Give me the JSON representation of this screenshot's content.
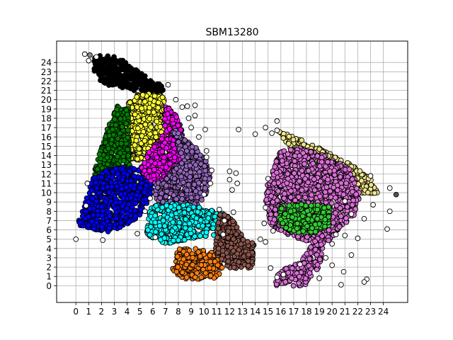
{
  "chart_data": {
    "type": "scatter",
    "title": "SBM13280",
    "xlabel": "",
    "ylabel": "",
    "xlim": [
      -1.5,
      25.9
    ],
    "ylim": [
      -1.8,
      26.3
    ],
    "x_ticks": [
      0,
      1,
      2,
      3,
      4,
      5,
      6,
      7,
      8,
      9,
      10,
      11,
      12,
      13,
      14,
      15,
      16,
      17,
      18,
      19,
      20,
      21,
      22,
      23,
      24
    ],
    "y_ticks": [
      0,
      1,
      2,
      3,
      4,
      5,
      6,
      7,
      8,
      9,
      10,
      11,
      12,
      13,
      14,
      15,
      16,
      17,
      18,
      19,
      20,
      21,
      22,
      23,
      24
    ],
    "grid": true,
    "legend": "none",
    "marker_edge_color": "#000000",
    "clusters": [
      {
        "color": "#000000",
        "x_range": [
          1.3,
          7.0
        ],
        "y_range": [
          20.5,
          24.8
        ],
        "polygon": [
          [
            1.3,
            24.7
          ],
          [
            3.0,
            24.8
          ],
          [
            4.5,
            23.5
          ],
          [
            6.0,
            22.0
          ],
          [
            7.0,
            21.5
          ],
          [
            6.8,
            20.5
          ],
          [
            4.5,
            21.0
          ],
          [
            2.5,
            21.5
          ],
          [
            1.5,
            22.5
          ]
        ]
      },
      {
        "color": "#FFFF33",
        "x_range": [
          3.8,
          7.5
        ],
        "y_range": [
          12.8,
          20.8
        ],
        "polygon": [
          [
            4.0,
            19.5
          ],
          [
            5.0,
            20.8
          ],
          [
            6.8,
            20.5
          ],
          [
            7.5,
            17.0
          ],
          [
            7.0,
            15.0
          ],
          [
            5.5,
            13.5
          ],
          [
            4.2,
            13.5
          ],
          [
            3.8,
            16.0
          ]
        ]
      },
      {
        "color": "#008000",
        "x_range": [
          1.3,
          4.2
        ],
        "y_range": [
          11.5,
          19.5
        ],
        "polygon": [
          [
            3.2,
            19.5
          ],
          [
            4.2,
            19.0
          ],
          [
            4.2,
            12.8
          ],
          [
            2.5,
            11.8
          ],
          [
            1.3,
            11.5
          ],
          [
            1.8,
            14.5
          ],
          [
            2.5,
            17.0
          ]
        ]
      },
      {
        "color": "#0000FF",
        "x_range": [
          0.1,
          6.1
        ],
        "y_range": [
          5.8,
          12.8
        ],
        "polygon": [
          [
            1.3,
            11.5
          ],
          [
            2.5,
            12.5
          ],
          [
            4.2,
            12.8
          ],
          [
            6.0,
            12.0
          ],
          [
            6.0,
            10.0
          ],
          [
            5.0,
            7.5
          ],
          [
            4.0,
            6.5
          ],
          [
            2.5,
            5.8
          ],
          [
            1.5,
            6.0
          ],
          [
            0.1,
            6.5
          ],
          [
            0.5,
            8.0
          ]
        ]
      },
      {
        "color": "#FF00FF",
        "x_range": [
          5.0,
          8.5
        ],
        "y_range": [
          11.2,
          19.5
        ],
        "polygon": [
          [
            7.0,
            19.5
          ],
          [
            8.0,
            18.0
          ],
          [
            8.5,
            15.5
          ],
          [
            8.3,
            13.0
          ],
          [
            7.5,
            11.5
          ],
          [
            5.8,
            11.2
          ],
          [
            5.0,
            12.5
          ],
          [
            5.5,
            14.0
          ],
          [
            6.8,
            16.5
          ]
        ]
      },
      {
        "color": "#9467BD",
        "x_range": [
          6.0,
          10.5
        ],
        "y_range": [
          8.2,
          17.0
        ],
        "polygon": [
          [
            7.5,
            17.0
          ],
          [
            8.5,
            16.0
          ],
          [
            10.0,
            14.0
          ],
          [
            10.5,
            12.0
          ],
          [
            10.2,
            9.5
          ],
          [
            9.0,
            8.2
          ],
          [
            6.5,
            8.5
          ],
          [
            6.0,
            10.5
          ],
          [
            7.2,
            12.0
          ],
          [
            8.3,
            13.5
          ]
        ]
      },
      {
        "color": "#00FFFF",
        "x_range": [
          5.5,
          11.5
        ],
        "y_range": [
          4.5,
          9.0
        ],
        "polygon": [
          [
            5.8,
            8.5
          ],
          [
            7.5,
            9.0
          ],
          [
            9.5,
            8.5
          ],
          [
            11.5,
            7.8
          ],
          [
            11.0,
            5.5
          ],
          [
            9.0,
            5.0
          ],
          [
            7.0,
            4.5
          ],
          [
            5.5,
            5.5
          ]
        ]
      },
      {
        "color": "#FF7F0E",
        "x_range": [
          7.5,
          11.5
        ],
        "y_range": [
          0.6,
          4.0
        ],
        "polygon": [
          [
            8.0,
            4.0
          ],
          [
            9.5,
            4.0
          ],
          [
            11.0,
            3.8
          ],
          [
            11.5,
            2.0
          ],
          [
            11.0,
            0.7
          ],
          [
            10.0,
            0.6
          ],
          [
            8.5,
            0.7
          ],
          [
            7.5,
            1.5
          ]
        ]
      },
      {
        "color": "#8C564B",
        "x_range": [
          10.8,
          13.9
        ],
        "y_range": [
          1.7,
          7.8
        ],
        "polygon": [
          [
            11.2,
            7.8
          ],
          [
            12.0,
            7.5
          ],
          [
            13.0,
            5.5
          ],
          [
            13.9,
            4.5
          ],
          [
            13.8,
            2.0
          ],
          [
            12.5,
            1.7
          ],
          [
            11.5,
            2.2
          ],
          [
            10.8,
            4.0
          ]
        ]
      },
      {
        "color": "#F0E68C",
        "x_range": [
          15.8,
          23.6
        ],
        "y_range": [
          9.8,
          16.6
        ],
        "polygon": [
          [
            15.8,
            16.6
          ],
          [
            17.5,
            15.8
          ],
          [
            19.5,
            14.5
          ],
          [
            21.5,
            13.0
          ],
          [
            23.0,
            11.5
          ],
          [
            23.6,
            10.0
          ],
          [
            22.5,
            9.8
          ],
          [
            21.5,
            10.5
          ],
          [
            20.0,
            12.0
          ],
          [
            18.0,
            13.5
          ],
          [
            16.5,
            15.0
          ]
        ]
      },
      {
        "color": "#DA70D6",
        "x_range": [
          14.8,
          22.2
        ],
        "y_range": [
          0.0,
          14.8
        ],
        "polygon": [
          [
            16.0,
            14.5
          ],
          [
            17.5,
            14.8
          ],
          [
            19.5,
            14.0
          ],
          [
            21.5,
            12.5
          ],
          [
            22.2,
            10.0
          ],
          [
            21.8,
            7.5
          ],
          [
            20.5,
            6.0
          ],
          [
            19.5,
            4.5
          ],
          [
            19.0,
            2.0
          ],
          [
            18.0,
            0.0
          ],
          [
            15.5,
            0.0
          ],
          [
            15.8,
            1.5
          ],
          [
            17.5,
            2.5
          ],
          [
            18.5,
            4.5
          ],
          [
            16.5,
            5.5
          ],
          [
            15.2,
            6.5
          ],
          [
            14.8,
            9.0
          ],
          [
            15.0,
            11.5
          ]
        ]
      },
      {
        "color": "#32CD32",
        "x_range": [
          15.8,
          19.8
        ],
        "y_range": [
          5.6,
          8.8
        ],
        "polygon": [
          [
            16.0,
            8.6
          ],
          [
            18.0,
            8.8
          ],
          [
            19.8,
            8.5
          ],
          [
            19.8,
            6.5
          ],
          [
            18.5,
            5.6
          ],
          [
            16.5,
            5.8
          ],
          [
            15.8,
            7.0
          ]
        ]
      }
    ],
    "outliers_color": "#FFFFFF",
    "outliers": [
      [
        0.7,
        24.9
      ],
      [
        1.0,
        24.2
      ],
      [
        1.6,
        24.6
      ],
      [
        0.0,
        5.0
      ],
      [
        0.8,
        8.6
      ],
      [
        0.9,
        11.0
      ],
      [
        2.1,
        4.9
      ],
      [
        4.8,
        5.6
      ],
      [
        6.2,
        5.2
      ],
      [
        5.8,
        9.4
      ],
      [
        5.4,
        8.0
      ],
      [
        7.2,
        21.6
      ],
      [
        7.8,
        20.0
      ],
      [
        8.3,
        19.2
      ],
      [
        8.8,
        18.0
      ],
      [
        8.7,
        19.3
      ],
      [
        9.0,
        17.0
      ],
      [
        9.3,
        18.3
      ],
      [
        9.6,
        16.0
      ],
      [
        9.3,
        19.4
      ],
      [
        10.2,
        14.5
      ],
      [
        10.2,
        13.8
      ],
      [
        10.1,
        16.8
      ],
      [
        10.6,
        12.4
      ],
      [
        10.5,
        11.0
      ],
      [
        10.0,
        9.8
      ],
      [
        11.2,
        8.2
      ],
      [
        11.6,
        7.0
      ],
      [
        11.5,
        5.5
      ],
      [
        12.3,
        7.9
      ],
      [
        12.0,
        11.4
      ],
      [
        12.2,
        10.3
      ],
      [
        12.6,
        11.0
      ],
      [
        12.5,
        12.1
      ],
      [
        12.0,
        12.3
      ],
      [
        12.7,
        16.8
      ],
      [
        14.0,
        16.3
      ],
      [
        14.4,
        5.0
      ],
      [
        14.8,
        17.0
      ],
      [
        15.0,
        11.5
      ],
      [
        15.3,
        16.4
      ],
      [
        15.7,
        17.7
      ],
      [
        15.7,
        16.7
      ],
      [
        14.8,
        8.4
      ],
      [
        14.7,
        6.7
      ],
      [
        14.8,
        4.7
      ],
      [
        15.4,
        5.9
      ],
      [
        15.2,
        1.9
      ],
      [
        15.7,
        0.9
      ],
      [
        16.2,
        1.2
      ],
      [
        17.5,
        2.3
      ],
      [
        20.7,
        0.1
      ],
      [
        20.9,
        1.5
      ],
      [
        19.5,
        3.0
      ],
      [
        20.0,
        4.5
      ],
      [
        21.5,
        3.3
      ],
      [
        22.0,
        5.1
      ],
      [
        22.5,
        7.2
      ],
      [
        23.2,
        8.7
      ],
      [
        21.5,
        7.7
      ],
      [
        21.0,
        9.1
      ],
      [
        24.5,
        8.0
      ],
      [
        23.0,
        11.8
      ],
      [
        24.5,
        10.5
      ],
      [
        24.3,
        6.1
      ],
      [
        22.7,
        0.7
      ],
      [
        22.5,
        0.4
      ],
      [
        20.3,
        5.5
      ],
      [
        21.0,
        5.4
      ],
      [
        20.0,
        2.2
      ],
      [
        19.0,
        0.8
      ]
    ],
    "special_points": [
      {
        "x": 25.0,
        "y": 9.8,
        "color": "#555555"
      },
      {
        "x": 1.1,
        "y": 24.8,
        "color": "#888888"
      }
    ]
  }
}
